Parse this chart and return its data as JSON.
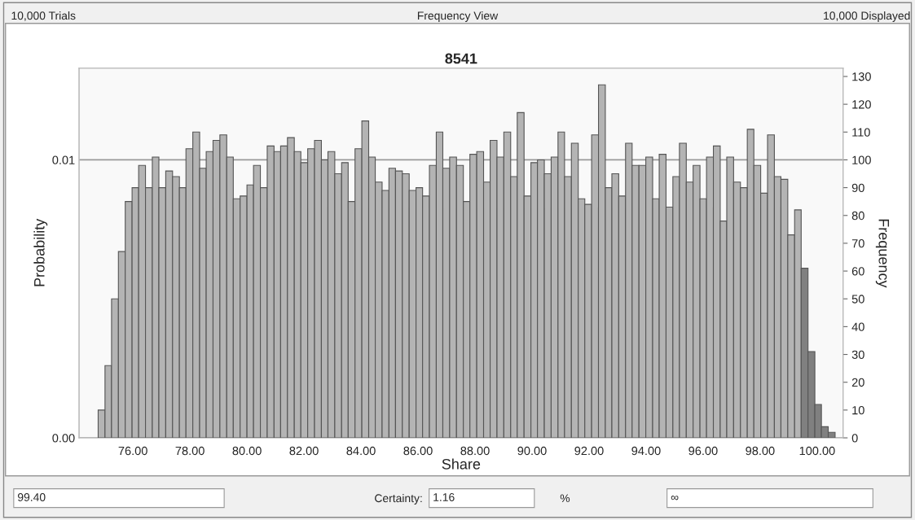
{
  "chart_data": {
    "type": "histogram",
    "title": "8541",
    "xlabel": "Share",
    "ylabel": "Probability",
    "y2label": "Frequency",
    "annotations": [
      "10,000 Trials",
      "Frequency View",
      "10,000 Displayed",
      "99.40",
      "Certainty:",
      "1.16",
      "%",
      "∞"
    ],
    "bins": [
      74.78,
      75.02,
      75.25,
      75.49,
      75.73,
      75.97,
      76.2,
      76.44,
      76.68,
      76.91,
      77.15,
      77.39,
      77.63,
      77.86,
      78.1,
      78.34,
      78.57,
      78.81,
      79.05,
      79.29,
      79.52,
      79.76,
      80.0,
      80.23,
      80.47,
      80.71,
      80.95,
      81.18,
      81.42,
      81.66,
      81.89,
      82.13,
      82.37,
      82.61,
      82.84,
      83.08,
      83.32,
      83.55,
      83.79,
      84.03,
      84.27,
      84.5,
      84.74,
      84.98,
      85.21,
      85.45,
      85.69,
      85.93,
      86.16,
      86.4,
      86.64,
      86.87,
      87.11,
      87.35,
      87.59,
      87.82,
      88.06,
      88.3,
      88.53,
      88.77,
      89.01,
      89.25,
      89.48,
      89.72,
      89.96,
      90.19,
      90.43,
      90.67,
      90.91,
      91.14,
      91.38,
      91.62,
      91.85,
      92.09,
      92.33,
      92.57,
      92.8,
      93.04,
      93.28,
      93.51,
      93.75,
      93.99,
      94.23,
      94.46,
      94.7,
      94.94,
      95.17,
      95.41,
      95.65,
      95.89,
      96.12,
      96.36,
      96.6,
      96.83,
      97.07,
      97.31,
      97.55,
      97.78,
      98.02,
      98.26,
      98.5,
      98.73,
      98.97,
      99.21,
      99.44,
      99.68,
      99.92,
      100.15,
      100.39,
      100.63
    ],
    "series": [
      {
        "axis": "y2",
        "values": [
          10,
          26,
          50,
          67,
          85,
          90,
          98,
          90,
          101,
          90,
          96,
          94,
          90,
          104,
          110,
          97,
          103,
          107,
          109,
          101,
          86,
          87,
          91,
          98,
          90,
          105,
          103,
          105,
          108,
          103,
          99,
          104,
          107,
          100,
          103,
          95,
          99,
          85,
          104,
          114,
          101,
          92,
          89,
          97,
          96,
          95,
          89,
          90,
          87,
          98,
          110,
          97,
          101,
          98,
          85,
          102,
          103,
          92,
          107,
          101,
          110,
          94,
          117,
          87,
          99,
          100,
          95,
          101,
          110,
          94,
          106,
          86,
          84,
          109,
          127,
          90,
          95,
          87,
          106,
          98,
          98,
          101,
          86,
          102,
          83,
          94,
          106,
          92,
          98,
          86,
          101,
          105,
          78,
          101,
          92,
          90,
          111,
          98,
          88,
          109,
          94,
          93,
          73,
          82,
          61,
          31,
          12,
          4,
          2
        ],
        "colors": [
          "#b4b4b4",
          "#b4b4b4",
          "#b4b4b4",
          "#b4b4b4",
          "#b4b4b4",
          "#b4b4b4",
          "#b4b4b4",
          "#b4b4b4",
          "#b4b4b4",
          "#b4b4b4",
          "#b4b4b4",
          "#b4b4b4",
          "#b4b4b4",
          "#b4b4b4",
          "#b4b4b4",
          "#b4b4b4",
          "#b4b4b4",
          "#b4b4b4",
          "#b4b4b4",
          "#b4b4b4",
          "#b4b4b4",
          "#b4b4b4",
          "#b4b4b4",
          "#b4b4b4",
          "#b4b4b4",
          "#b4b4b4",
          "#b4b4b4",
          "#b4b4b4",
          "#b4b4b4",
          "#b4b4b4",
          "#b4b4b4",
          "#b4b4b4",
          "#b4b4b4",
          "#b4b4b4",
          "#b4b4b4",
          "#b4b4b4",
          "#b4b4b4",
          "#b4b4b4",
          "#b4b4b4",
          "#b4b4b4",
          "#b4b4b4",
          "#b4b4b4",
          "#b4b4b4",
          "#b4b4b4",
          "#b4b4b4",
          "#b4b4b4",
          "#b4b4b4",
          "#b4b4b4",
          "#b4b4b4",
          "#b4b4b4",
          "#b4b4b4",
          "#b4b4b4",
          "#b4b4b4",
          "#b4b4b4",
          "#b4b4b4",
          "#b4b4b4",
          "#b4b4b4",
          "#b4b4b4",
          "#b4b4b4",
          "#b4b4b4",
          "#b4b4b4",
          "#b4b4b4",
          "#b4b4b4",
          "#b4b4b4",
          "#b4b4b4",
          "#b4b4b4",
          "#b4b4b4",
          "#b4b4b4",
          "#b4b4b4",
          "#b4b4b4",
          "#b4b4b4",
          "#b4b4b4",
          "#b4b4b4",
          "#b4b4b4",
          "#b4b4b4",
          "#b4b4b4",
          "#b4b4b4",
          "#b4b4b4",
          "#b4b4b4",
          "#b4b4b4",
          "#b4b4b4",
          "#b4b4b4",
          "#b4b4b4",
          "#b4b4b4",
          "#b4b4b4",
          "#b4b4b4",
          "#b4b4b4",
          "#b4b4b4",
          "#b4b4b4",
          "#b4b4b4",
          "#b4b4b4",
          "#b4b4b4",
          "#b4b4b4",
          "#b4b4b4",
          "#b4b4b4",
          "#b4b4b4",
          "#b4b4b4",
          "#b4b4b4",
          "#b4b4b4",
          "#b4b4b4",
          "#b4b4b4",
          "#b4b4b4",
          "#b4b4b4",
          "#b4b4b4",
          "#808080",
          "#808080",
          "#808080",
          "#808080",
          "#808080"
        ]
      }
    ],
    "xlim": [
      74.11,
      100.91
    ],
    "xticks": [
      {
        "value": 76,
        "label": "76.00"
      },
      {
        "value": 78,
        "label": "78.00"
      },
      {
        "value": 80,
        "label": "80.00"
      },
      {
        "value": 82,
        "label": "82.00"
      },
      {
        "value": 84,
        "label": "84.00"
      },
      {
        "value": 86,
        "label": "86.00"
      },
      {
        "value": 88,
        "label": "88.00"
      },
      {
        "value": 90,
        "label": "90.00"
      },
      {
        "value": 92,
        "label": "92.00"
      },
      {
        "value": 94,
        "label": "94.00"
      },
      {
        "value": 96,
        "label": "96.00"
      },
      {
        "value": 98,
        "label": "98.00"
      },
      {
        "value": 100,
        "label": "100.00"
      }
    ],
    "ylim": [
      0,
      0.0133
    ],
    "yticks": [
      {
        "value": 0,
        "label": "0.00"
      },
      {
        "value": 0.01,
        "label": "0.01"
      }
    ],
    "y2lim": [
      0,
      133
    ],
    "y2ticks": [
      0,
      10,
      20,
      30,
      40,
      50,
      60,
      70,
      80,
      90,
      100,
      110,
      120,
      130
    ],
    "grid": "y"
  }
}
